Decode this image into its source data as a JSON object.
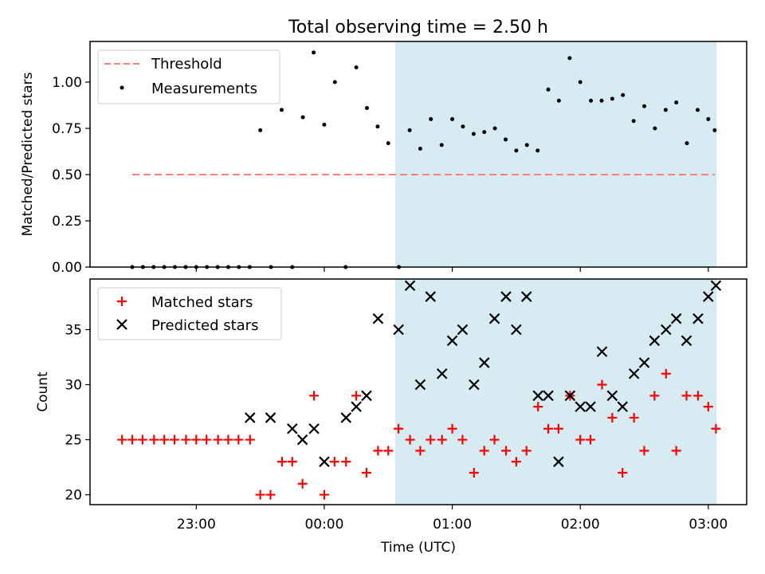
{
  "chart_data": [
    {
      "type": "scatter",
      "title": "Total observing time = 2.50 h",
      "ylabel": "Matched/Predicted stars",
      "ylim": [
        0,
        1.22
      ],
      "yticks": [
        0.0,
        0.25,
        0.5,
        0.75,
        1.0
      ],
      "ytick_labels": [
        "0.00",
        "0.25",
        "0.50",
        "0.75",
        "1.00"
      ],
      "legend_location": "upper-left",
      "threshold": {
        "name": "Threshold",
        "value": 0.5,
        "x_range": [
          -1.5,
          3.05
        ],
        "color": "#ff8080"
      },
      "series": [
        {
          "name": "Measurements",
          "color": "#000000",
          "x": [
            -1.5,
            -1.417,
            -1.333,
            -1.25,
            -1.167,
            -1.083,
            -1.0,
            -0.917,
            -0.833,
            -0.75,
            -0.667,
            -0.583,
            -0.5,
            -0.417,
            -0.333,
            -0.25,
            -0.167,
            -0.083,
            0.0,
            0.083,
            0.167,
            0.25,
            0.333,
            0.417,
            0.5,
            0.583,
            0.667,
            0.75,
            0.833,
            0.917,
            1.0,
            1.083,
            1.167,
            1.25,
            1.333,
            1.417,
            1.5,
            1.583,
            1.667,
            1.75,
            1.833,
            1.917,
            2.0,
            2.083,
            2.167,
            2.25,
            2.333,
            2.417,
            2.5,
            2.583,
            2.667,
            2.75,
            2.833,
            2.917,
            3.0,
            3.05
          ],
          "y": [
            0.0,
            0.0,
            0.0,
            0.0,
            0.0,
            0.0,
            0.0,
            0.0,
            0.0,
            0.0,
            0.0,
            0.0,
            0.74,
            0.0,
            0.85,
            0.0,
            0.81,
            1.16,
            0.77,
            1.0,
            0.0,
            1.08,
            0.86,
            0.76,
            0.67,
            0.0,
            0.74,
            0.64,
            0.8,
            0.66,
            0.8,
            0.76,
            0.72,
            0.73,
            0.75,
            0.69,
            0.63,
            0.66,
            0.63,
            0.96,
            0.9,
            1.13,
            1.0,
            0.9,
            0.9,
            0.91,
            0.93,
            0.79,
            0.87,
            0.75,
            0.85,
            0.89,
            0.67,
            0.85,
            0.8,
            0.74
          ]
        }
      ]
    },
    {
      "type": "scatter",
      "xlabel": "Time (UTC)",
      "ylabel": "Count",
      "ylim": [
        19.1,
        39.6
      ],
      "yticks": [
        20,
        25,
        30,
        35
      ],
      "ytick_labels": [
        "20",
        "25",
        "30",
        "35"
      ],
      "xlim": [
        -1.83,
        3.3
      ],
      "xticks": [
        -1,
        0,
        1,
        2,
        3
      ],
      "xtick_labels": [
        "23:00",
        "00:00",
        "01:00",
        "02:00",
        "03:00"
      ],
      "legend_location": "upper-left",
      "shaded_region": {
        "x_range": [
          0.56,
          3.06
        ],
        "color": "#add8e6"
      },
      "series": [
        {
          "name": "Matched stars",
          "color": "#ff0000",
          "marker": "plus",
          "x": [
            -1.58,
            -1.5,
            -1.42,
            -1.33,
            -1.25,
            -1.17,
            -1.08,
            -1.0,
            -0.92,
            -0.83,
            -0.75,
            -0.67,
            -0.58,
            -0.5,
            -0.42,
            -0.33,
            -0.25,
            -0.17,
            -0.08,
            0.0,
            0.08,
            0.17,
            0.25,
            0.33,
            0.42,
            0.5,
            0.58,
            0.67,
            0.75,
            0.83,
            0.92,
            1.0,
            1.08,
            1.17,
            1.25,
            1.33,
            1.42,
            1.5,
            1.58,
            1.67,
            1.75,
            1.83,
            1.92,
            2.0,
            2.08,
            2.17,
            2.25,
            2.33,
            2.42,
            2.5,
            2.58,
            2.67,
            2.75,
            2.83,
            2.92,
            3.0,
            3.06
          ],
          "y": [
            25,
            25,
            25,
            25,
            25,
            25,
            25,
            25,
            25,
            25,
            25,
            25,
            25,
            20,
            20,
            23,
            23,
            21,
            29,
            20,
            23,
            23,
            29,
            22,
            24,
            24,
            26,
            25,
            24,
            25,
            25,
            26,
            25,
            22,
            24,
            25,
            24,
            23,
            24,
            28,
            26,
            26,
            29,
            25,
            25,
            30,
            27,
            22,
            27,
            24,
            29,
            31,
            24,
            29,
            29,
            28,
            26
          ]
        },
        {
          "name": "Predicted stars",
          "color": "#000000",
          "marker": "x",
          "x": [
            -0.58,
            -0.42,
            -0.25,
            -0.17,
            -0.08,
            0.0,
            0.17,
            0.25,
            0.33,
            0.42,
            0.58,
            0.67,
            0.75,
            0.83,
            0.92,
            1.0,
            1.08,
            1.17,
            1.25,
            1.33,
            1.42,
            1.5,
            1.58,
            1.67,
            1.75,
            1.83,
            1.92,
            2.0,
            2.08,
            2.17,
            2.25,
            2.33,
            2.42,
            2.5,
            2.58,
            2.67,
            2.75,
            2.83,
            2.92,
            3.0,
            3.06
          ],
          "y": [
            27,
            27,
            26,
            25,
            26,
            23,
            27,
            28,
            29,
            36,
            35,
            39,
            30,
            38,
            31,
            34,
            35,
            30,
            32,
            36,
            38,
            35,
            38,
            29,
            29,
            23,
            29,
            28,
            28,
            33,
            29,
            28,
            31,
            32,
            34,
            35,
            36,
            34,
            36,
            38,
            39
          ]
        }
      ]
    }
  ]
}
